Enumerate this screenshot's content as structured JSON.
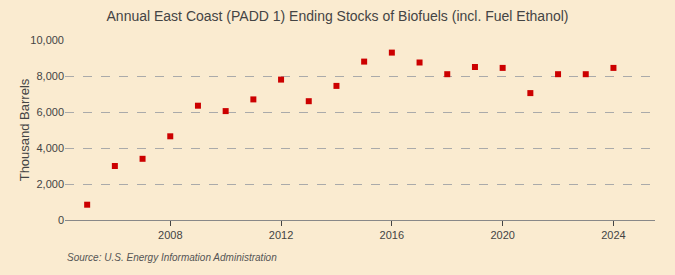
{
  "chart_data": {
    "type": "scatter",
    "title": "Annual East Coast (PADD 1) Ending Stocks of Biofuels (incl. Fuel Ethanol)",
    "ylabel": "Thousand Barrels",
    "annotations": [
      "Source: U.S. Energy Information Administration"
    ],
    "x": [
      2005,
      2006,
      2007,
      2008,
      2009,
      2010,
      2011,
      2012,
      2013,
      2014,
      2015,
      2016,
      2017,
      2018,
      2019,
      2020,
      2021,
      2022,
      2023,
      2024
    ],
    "values": [
      850,
      3000,
      3400,
      4650,
      6350,
      6050,
      6700,
      7800,
      6600,
      7450,
      8800,
      9300,
      8750,
      8100,
      8500,
      8450,
      7050,
      8100,
      8100,
      8450
    ],
    "color": "#cc0000",
    "marker": "square",
    "xlim": [
      2004.2,
      2025.5
    ],
    "xticks": [
      2008,
      2012,
      2016,
      2020,
      2024
    ],
    "ylim": [
      0,
      10000
    ],
    "yticks": [
      0,
      {
        "value": 2000,
        "label": "2,000"
      },
      {
        "value": 4000,
        "label": "4,000"
      },
      {
        "value": 6000,
        "label": "6,000"
      },
      {
        "value": 8000,
        "label": "8,000"
      },
      {
        "value": 10000,
        "label": "10,000"
      }
    ],
    "grid": true
  }
}
